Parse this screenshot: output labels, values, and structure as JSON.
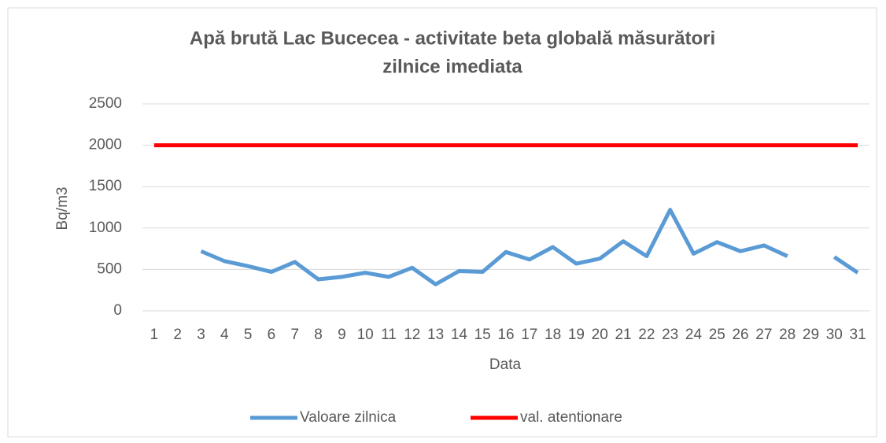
{
  "chart_data": {
    "type": "line",
    "title": [
      "Apă brută Lac Bucecea - activitate beta globală măsurători",
      "zilnice imediata"
    ],
    "x_label": "Data",
    "y_label": "Bq/m3",
    "categories": [
      "1",
      "2",
      "3",
      "4",
      "5",
      "6",
      "7",
      "8",
      "9",
      "10",
      "11",
      "12",
      "13",
      "14",
      "15",
      "16",
      "17",
      "18",
      "19",
      "20",
      "21",
      "22",
      "23",
      "24",
      "25",
      "26",
      "27",
      "28",
      "29",
      "30",
      "31"
    ],
    "series": [
      {
        "name": "Valoare zilnica",
        "color": "#5b9bd5",
        "values": [
          null,
          null,
          720,
          600,
          540,
          470,
          590,
          380,
          410,
          460,
          410,
          520,
          320,
          480,
          470,
          710,
          620,
          770,
          570,
          630,
          840,
          660,
          1220,
          690,
          830,
          720,
          790,
          660,
          null,
          650,
          460
        ]
      },
      {
        "name": "val. atentionare",
        "color": "#ff0000",
        "values": [
          2000,
          2000,
          2000,
          2000,
          2000,
          2000,
          2000,
          2000,
          2000,
          2000,
          2000,
          2000,
          2000,
          2000,
          2000,
          2000,
          2000,
          2000,
          2000,
          2000,
          2000,
          2000,
          2000,
          2000,
          2000,
          2000,
          2000,
          2000,
          2000,
          2000,
          2000
        ]
      }
    ],
    "ylim": [
      0,
      2500
    ],
    "yticks": [
      0,
      500,
      1000,
      1500,
      2000,
      2500
    ],
    "grid": true,
    "legend": "bottom"
  }
}
